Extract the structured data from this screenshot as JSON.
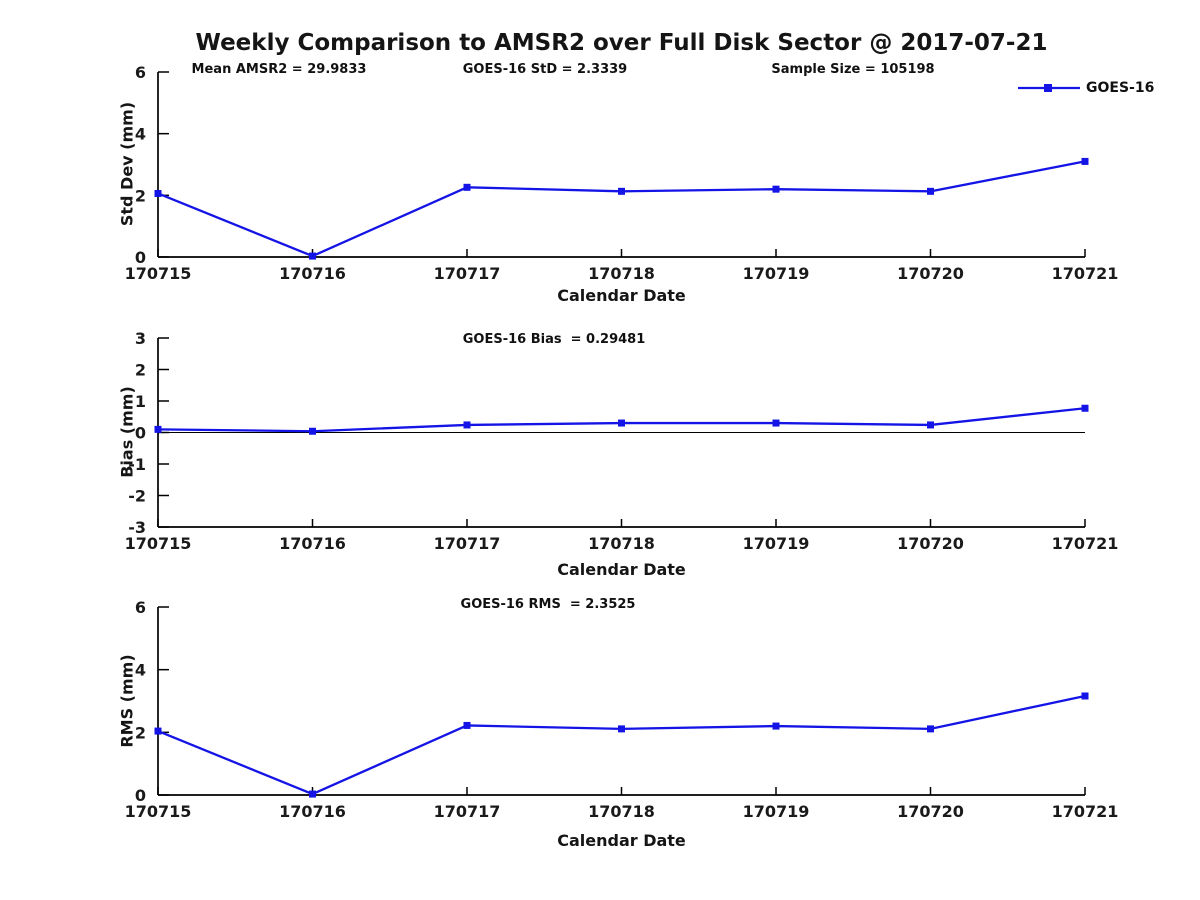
{
  "title": "Weekly Comparison to AMSR2 over Full Disk Sector @ 2017-07-21",
  "accent_color": "#1414e6",
  "axis_color": "#000000",
  "chart_data": [
    {
      "type": "line",
      "ylabel": "Std Dev (mm)",
      "xlabel": "Calendar Date",
      "categories": [
        "170715",
        "170716",
        "170717",
        "170718",
        "170719",
        "170720",
        "170721"
      ],
      "series": [
        {
          "name": "GOES-16",
          "values": [
            2.06,
            0.03,
            2.26,
            2.13,
            2.2,
            2.13,
            3.1
          ]
        }
      ],
      "ylim": [
        0,
        6
      ],
      "yticks": [
        0,
        2,
        4,
        6
      ],
      "grid": false,
      "legend_position": "top-right",
      "annotations": [
        "Mean AMSR2 = 29.9833",
        "GOES-16 StD = 2.3339",
        "Sample Size = 105198"
      ]
    },
    {
      "type": "line",
      "ylabel": "Bias (mm)",
      "xlabel": "Calendar Date",
      "categories": [
        "170715",
        "170716",
        "170717",
        "170718",
        "170719",
        "170720",
        "170721"
      ],
      "series": [
        {
          "name": "GOES-16",
          "values": [
            0.1,
            0.04,
            0.24,
            0.3,
            0.3,
            0.24,
            0.77
          ]
        }
      ],
      "ylim": [
        -3,
        3
      ],
      "yticks": [
        -3,
        -2,
        -1,
        0,
        1,
        2,
        3
      ],
      "zero_line": true,
      "grid": false,
      "annotations": [
        "GOES-16 Bias  = 0.29481"
      ]
    },
    {
      "type": "line",
      "ylabel": "RMS (mm)",
      "xlabel": "Calendar Date",
      "categories": [
        "170715",
        "170716",
        "170717",
        "170718",
        "170719",
        "170720",
        "170721"
      ],
      "series": [
        {
          "name": "GOES-16",
          "values": [
            2.04,
            0.03,
            2.22,
            2.11,
            2.2,
            2.11,
            3.16
          ]
        }
      ],
      "ylim": [
        0,
        6
      ],
      "yticks": [
        0,
        2,
        4,
        6
      ],
      "grid": false,
      "annotations": [
        "GOES-16 RMS  = 2.3525"
      ]
    }
  ]
}
